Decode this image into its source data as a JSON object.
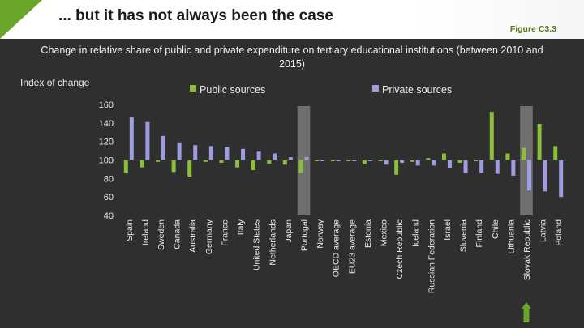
{
  "slide": {
    "title": "... but it has not always been the case",
    "figure_label": "Figure C3.3"
  },
  "colors": {
    "public": "#8bbf3a",
    "private": "#9d9de0",
    "highlight": "#7a7a7a",
    "arrow": "#6aa62a"
  },
  "chart_data": {
    "type": "bar",
    "title": "Change in relative share of public and private expenditure on tertiary educational institutions (between 2010 and 2015)",
    "ylabel": "Index of change",
    "xlabel": "",
    "ylim": [
      40,
      160
    ],
    "yticks": [
      40,
      60,
      80,
      100,
      120,
      140,
      160
    ],
    "baseline": 100,
    "legend": {
      "position": "top",
      "entries": [
        "Public sources",
        "Private sources"
      ]
    },
    "highlighted_categories": [
      "Portugal",
      "Slovak Republic"
    ],
    "categories": [
      "Spain",
      "Ireland",
      "Sweden",
      "Canada",
      "Australia",
      "Germany",
      "France",
      "Italy",
      "United States",
      "Netherlands",
      "Japan",
      "Portugal",
      "Norway",
      "OECD average",
      "EU23 average",
      "Estonia",
      "Mexico",
      "Czech Republic",
      "Iceland",
      "Russian Federation",
      "Israel",
      "Slovenia",
      "Finland",
      "Chile",
      "Lithuania",
      "Slovak Republic",
      "Latvia",
      "Poland"
    ],
    "series": [
      {
        "name": "Public sources",
        "values": [
          86,
          92,
          98,
          87,
          82,
          98,
          97,
          92,
          89,
          96,
          95,
          86,
          100,
          100,
          100,
          96,
          99,
          84,
          98,
          102,
          107,
          97,
          100,
          152,
          107,
          113,
          139,
          115
        ]
      },
      {
        "name": "Private sources",
        "values": [
          146,
          141,
          126,
          119,
          116,
          115,
          114,
          112,
          109,
          107,
          103,
          103,
          99,
          100,
          100,
          100,
          95,
          97,
          94,
          94,
          91,
          86,
          86,
          85,
          83,
          67,
          66,
          60
        ]
      }
    ]
  }
}
